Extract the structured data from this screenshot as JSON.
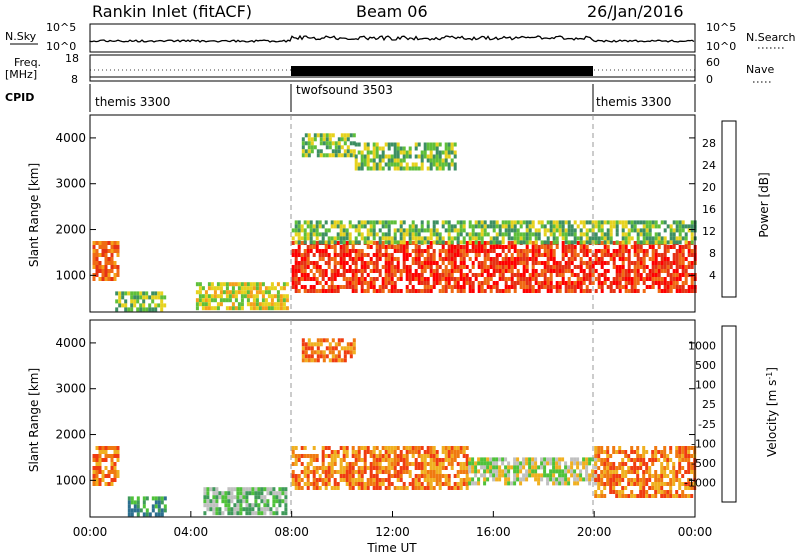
{
  "header": {
    "station": "Rankin Inlet (fitACF)",
    "beam": "Beam 06",
    "date": "26/Jan/2016"
  },
  "strip": {
    "nsky_label": "N.Sky",
    "nsky_ticks": [
      "10^5",
      "10^0"
    ],
    "nsearch_label": "N.Search",
    "nsearch_ticks": [
      "10^5",
      "10^0"
    ],
    "freq_label": "Freq.",
    "freq_unit": "[MHz]",
    "freq_ticks": [
      "18",
      "8"
    ],
    "nave_label": "Nave",
    "nave_ticks": [
      "60",
      "0"
    ],
    "cpid_label": "CPID"
  },
  "cpid_segments": [
    "themis 3300",
    "twofsound 3503",
    "themis 3300"
  ],
  "colors": {
    "power": [
      "#1a14e6",
      "#1f4fa0",
      "#3d8f62",
      "#5fbf3a",
      "#e6d21e",
      "#f5a01a",
      "#f06a14",
      "#e63214",
      "#ff0000"
    ],
    "velocity": [
      "#1f40c0",
      "#2c6f8f",
      "#3f9a5a",
      "#4fc23a",
      "#c0c0c0",
      "#f0b020",
      "#f07a10",
      "#f03c10",
      "#ff0000"
    ]
  },
  "chart_data": [
    {
      "type": "heatmap",
      "panel": "power",
      "ylabel": "Slant Range [km]",
      "yticks": [
        "1000",
        "2000",
        "3000",
        "4000"
      ],
      "ylim": [
        200,
        4500
      ],
      "xlim": [
        0,
        24
      ],
      "cbar_label": "Power [dB]",
      "cbar_ticks": [
        "4",
        "8",
        "12",
        "16",
        "20",
        "24",
        "28"
      ],
      "regions": [
        {
          "t": [
            0.1,
            1.1
          ],
          "r": [
            900,
            1750
          ],
          "level": 6
        },
        {
          "t": [
            1.0,
            3.0
          ],
          "r": [
            250,
            650
          ],
          "level": 3
        },
        {
          "t": [
            4.2,
            7.8
          ],
          "r": [
            250,
            850
          ],
          "level": 4
        },
        {
          "t": [
            8.0,
            24.0
          ],
          "r": [
            700,
            1750
          ],
          "level": 7
        },
        {
          "t": [
            8.0,
            24.0
          ],
          "r": [
            1750,
            2200
          ],
          "level": 3
        },
        {
          "t": [
            8.4,
            10.5
          ],
          "r": [
            3600,
            4100
          ],
          "level": 3
        },
        {
          "t": [
            10.5,
            14.5
          ],
          "r": [
            3300,
            3900
          ],
          "level": 3
        }
      ]
    },
    {
      "type": "heatmap",
      "panel": "velocity",
      "ylabel": "Slant Range [km]",
      "yticks": [
        "1000",
        "2000",
        "3000",
        "4000"
      ],
      "ylim": [
        200,
        4500
      ],
      "xlim": [
        0,
        24
      ],
      "cbar_label": "Velocity [m s^-1]",
      "cbar_ticks": [
        "1000",
        "500",
        "100",
        "25",
        "-25",
        "-100",
        "-500",
        "-1000"
      ],
      "xlabel": "Time UT",
      "xticks": [
        "00:00",
        "04:00",
        "08:00",
        "12:00",
        "16:00",
        "20:00",
        "00:00"
      ],
      "regions": [
        {
          "t": [
            0.1,
            1.1
          ],
          "r": [
            900,
            1750
          ],
          "level": 6
        },
        {
          "t": [
            1.5,
            3.0
          ],
          "r": [
            250,
            650
          ],
          "level": 2
        },
        {
          "t": [
            4.5,
            7.8
          ],
          "r": [
            250,
            850
          ],
          "level": 3
        },
        {
          "t": [
            8.0,
            15.0
          ],
          "r": [
            800,
            1750
          ],
          "level": 6
        },
        {
          "t": [
            15.0,
            20.0
          ],
          "r": [
            900,
            1500
          ],
          "level": 4
        },
        {
          "t": [
            20.0,
            24.0
          ],
          "r": [
            700,
            1750
          ],
          "level": 6
        },
        {
          "t": [
            8.4,
            10.5
          ],
          "r": [
            3600,
            4100
          ],
          "level": 6
        }
      ]
    }
  ]
}
